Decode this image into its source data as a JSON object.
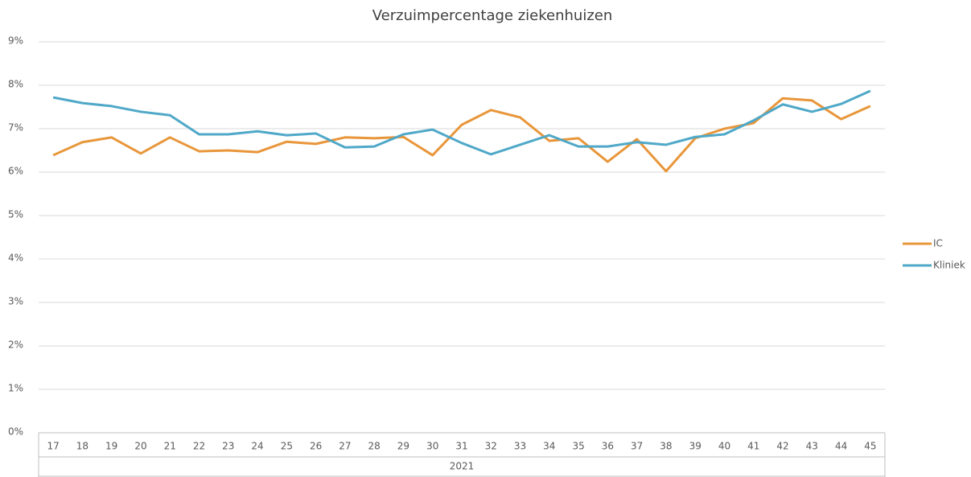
{
  "chart_data": {
    "type": "line",
    "title": "Verzuimpercentage ziekenhuizen",
    "x_group_label": "2021",
    "categories": [
      "17",
      "18",
      "19",
      "20",
      "21",
      "22",
      "23",
      "24",
      "25",
      "26",
      "27",
      "28",
      "29",
      "30",
      "31",
      "32",
      "33",
      "34",
      "35",
      "36",
      "37",
      "38",
      "39",
      "40",
      "41",
      "42",
      "43",
      "44",
      "45"
    ],
    "series": [
      {
        "name": "IC",
        "color": "#e8963a",
        "values": [
          6.39,
          6.69,
          6.8,
          6.43,
          6.8,
          6.48,
          6.5,
          6.46,
          6.7,
          6.65,
          6.8,
          6.78,
          6.81,
          6.39,
          7.09,
          7.43,
          7.26,
          6.72,
          6.78,
          6.24,
          6.76,
          6.02,
          6.78,
          7.0,
          7.13,
          7.7,
          7.65,
          7.22,
          7.52
        ]
      },
      {
        "name": "Kliniek",
        "color": "#4fa8c8",
        "values": [
          7.72,
          7.59,
          7.52,
          7.39,
          7.31,
          6.87,
          6.87,
          6.94,
          6.85,
          6.89,
          6.57,
          6.59,
          6.87,
          6.98,
          6.67,
          6.41,
          6.63,
          6.85,
          6.59,
          6.59,
          6.69,
          6.63,
          6.81,
          6.87,
          7.19,
          7.56,
          7.39,
          7.57,
          7.87
        ]
      }
    ],
    "ylim": [
      0,
      9
    ],
    "yticks": [
      {
        "value": 0,
        "label": "0%"
      },
      {
        "value": 1,
        "label": "1%"
      },
      {
        "value": 2,
        "label": "2%"
      },
      {
        "value": 3,
        "label": "3%"
      },
      {
        "value": 4,
        "label": "4%"
      },
      {
        "value": 5,
        "label": "5%"
      },
      {
        "value": 6,
        "label": "6%"
      },
      {
        "value": 7,
        "label": "7%"
      },
      {
        "value": 8,
        "label": "8%"
      },
      {
        "value": 9,
        "label": "9%"
      }
    ],
    "grid": true,
    "legend": "right"
  }
}
